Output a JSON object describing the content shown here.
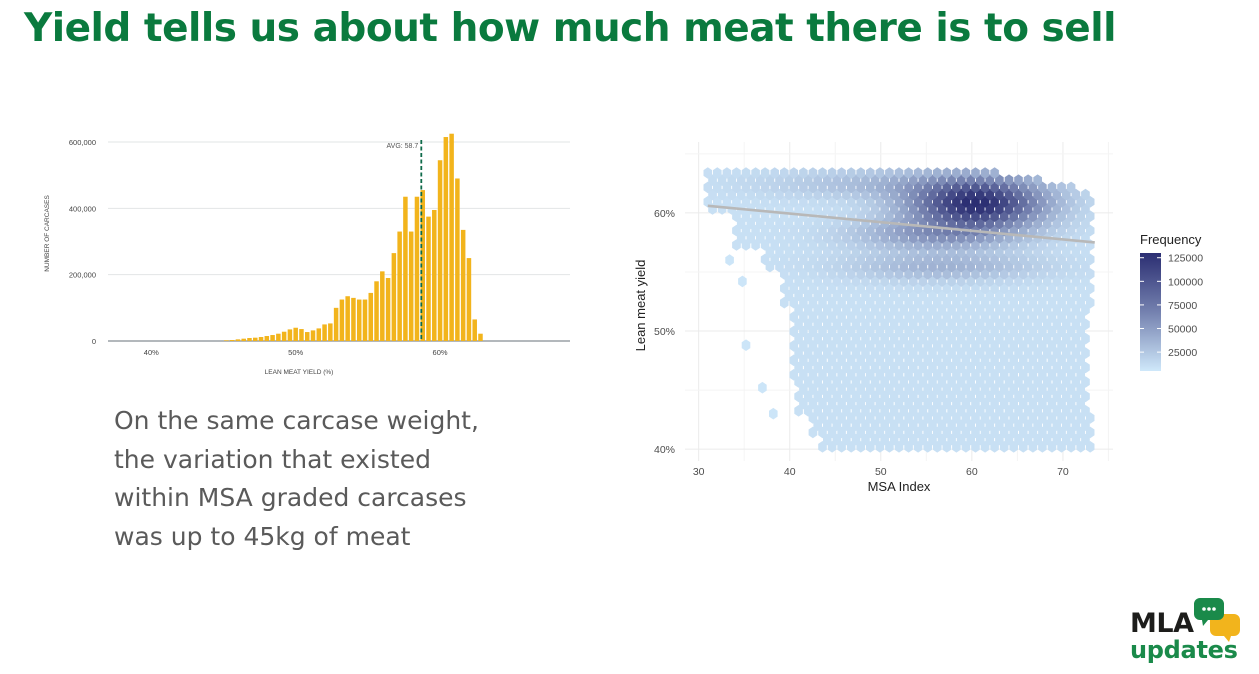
{
  "slide": {
    "title": "Yield tells us about how much meat there is to sell",
    "caption_lines": [
      "On the same carcase weight,",
      "the variation that existed",
      "within MSA graded carcases",
      "was up to 45kg of meat"
    ]
  },
  "logo": {
    "line1": "MLA",
    "line2": "updates",
    "colors": {
      "green": "#1a8a4a",
      "yellow": "#f2b41c",
      "dark": "#1d1d1b"
    }
  },
  "colors": {
    "title": "#0a7a3e",
    "bar": "#f2b41c",
    "avg_line": "#0f6b4a",
    "caption": "#5a5a5a",
    "hex_light": "#cfe8fa",
    "hex_dark": "#2b2e72",
    "trend": "#b8b8b8"
  },
  "chart_data": [
    {
      "type": "bar",
      "title": "",
      "xlabel": "LEAN MEAT YIELD (%)",
      "ylabel": "NUMBER OF CARCASES",
      "xlim": [
        37,
        69
      ],
      "ylim": [
        0,
        600000
      ],
      "x_ticks": [
        40,
        50,
        60
      ],
      "x_tick_labels": [
        "40%",
        "50%",
        "60%"
      ],
      "y_ticks": [
        0,
        200000,
        400000,
        600000
      ],
      "y_tick_labels": [
        "0",
        "200,000",
        "400,000",
        "600,000"
      ],
      "grid": "horizontal",
      "avg_line": {
        "x": 58.7,
        "label": "AVG: 58.7"
      },
      "x": [
        37.2,
        37.6,
        38.0,
        38.4,
        38.8,
        39.2,
        39.6,
        40.0,
        40.4,
        40.8,
        41.2,
        41.6,
        42.0,
        42.4,
        42.8,
        43.2,
        43.6,
        44.0,
        44.4,
        44.8,
        45.2,
        45.6,
        46.0,
        46.4,
        46.8,
        47.2,
        47.6,
        48.0,
        48.4,
        48.8,
        49.2,
        49.6,
        50.0,
        50.4,
        50.8,
        51.2,
        51.6,
        52.0,
        52.4,
        52.8,
        53.2,
        53.6,
        54.0,
        54.4,
        54.8,
        55.2,
        55.6,
        56.0,
        56.4,
        56.8,
        57.2,
        57.6,
        58.0,
        58.4,
        58.8,
        59.2,
        59.6,
        60.0,
        60.4,
        60.8,
        61.2,
        61.6,
        62.0,
        62.4,
        62.8,
        63.2,
        63.6,
        64.0,
        64.4,
        64.8,
        65.2,
        65.6,
        66.0,
        66.4,
        66.8,
        67.2,
        67.6,
        68.0,
        68.4
      ],
      "values": [
        0,
        0,
        0,
        0,
        0,
        0,
        0,
        0,
        0,
        0,
        0,
        0,
        0,
        0,
        0,
        0,
        0,
        0,
        0,
        0,
        2000,
        3000,
        5000,
        7000,
        9000,
        10000,
        12000,
        15000,
        18000,
        22000,
        28000,
        35000,
        40000,
        36000,
        27000,
        32000,
        38000,
        50000,
        53000,
        100000,
        125000,
        135000,
        130000,
        125000,
        125000,
        145000,
        180000,
        210000,
        190000,
        265000,
        330000,
        435000,
        330000,
        435000,
        455000,
        375000,
        395000,
        545000,
        615000,
        625000,
        490000,
        335000,
        250000,
        65000,
        22000,
        0,
        0,
        0,
        0,
        0,
        0,
        0,
        0,
        0,
        0,
        0,
        0,
        0,
        0
      ]
    },
    {
      "type": "heatmap",
      "title": "",
      "xlabel": "MSA Index",
      "ylabel": "Lean meat yield",
      "xlim": [
        28.5,
        75.5
      ],
      "ylim": [
        39,
        66
      ],
      "x_ticks": [
        30,
        40,
        50,
        60,
        70
      ],
      "x_tick_labels": [
        "30",
        "40",
        "50",
        "60",
        "70"
      ],
      "y_ticks": [
        40,
        50,
        60
      ],
      "y_tick_labels": [
        "40%",
        "50%",
        "60%"
      ],
      "grid": true,
      "legend": {
        "title": "Frequency",
        "placement": "right",
        "range": [
          5000,
          130000
        ],
        "ticks": [
          25000,
          50000,
          75000,
          100000,
          125000
        ],
        "tick_labels": [
          "25000",
          "50000",
          "75000",
          "100000",
          "125000"
        ]
      },
      "hexbin_coverage": {
        "msa_range": [
          31,
          73.5
        ],
        "lmy_range": [
          40.2,
          63.5
        ],
        "peak": {
          "msa": 60,
          "lmy": 61,
          "frequency": 130000
        }
      },
      "trend_line": {
        "x": [
          31,
          73.5
        ],
        "y": [
          60.6,
          57.5
        ]
      }
    }
  ]
}
